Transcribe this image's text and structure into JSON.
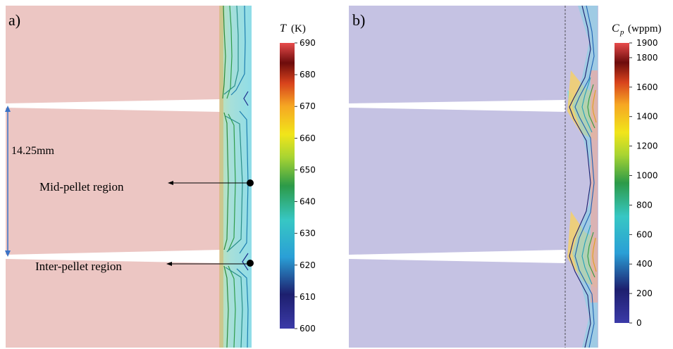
{
  "panel_a": {
    "label": "a)",
    "dimension": "14.25mm",
    "annotations": [
      "Mid-pellet region",
      "Inter-pellet region"
    ],
    "colorbar": {
      "title_var": "T",
      "title_unit": "(K)",
      "ticks": [
        "690",
        "680",
        "670",
        "660",
        "650",
        "640",
        "630",
        "620",
        "610",
        "600"
      ]
    }
  },
  "panel_b": {
    "label": "b)",
    "colorbar": {
      "title_var": "C",
      "title_sub": "p",
      "title_unit": "(wppm)",
      "ticks": [
        "1900",
        "1800",
        "1600",
        "1400",
        "1200",
        "1000",
        "800",
        "600",
        "400",
        "200",
        "0"
      ]
    }
  },
  "colors": {
    "pellet_a": "#ecc6c3",
    "cladding_a": "#a9e0e6",
    "pellet_b": "#c5c2e3",
    "arrow_blue": "#3a73c6"
  }
}
